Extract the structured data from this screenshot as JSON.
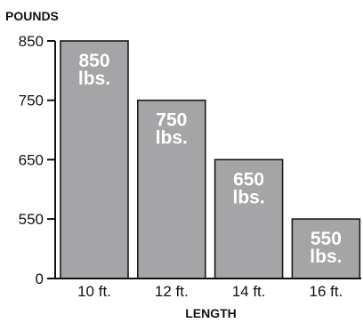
{
  "chart_data": {
    "type": "bar",
    "ylabel": "POUNDS",
    "xlabel": "LENGTH",
    "categories": [
      "10 ft.",
      "12 ft.",
      "14 ft.",
      "16 ft."
    ],
    "values": [
      850,
      750,
      650,
      550
    ],
    "bar_labels": [
      [
        "850",
        "lbs."
      ],
      [
        "750",
        "lbs."
      ],
      [
        "650",
        "lbs."
      ],
      [
        "550",
        "lbs."
      ]
    ],
    "y_ticks": [
      850,
      750,
      650,
      550,
      0
    ],
    "y_tick_labels": [
      "850",
      "750",
      "650",
      "550",
      "0"
    ],
    "y_axis_break": "between 0 and 550",
    "grid": false,
    "legend": "none",
    "colors": {
      "bar": "#a5a5a7",
      "bar_label": "#ffffff",
      "axis": "#111111"
    }
  }
}
